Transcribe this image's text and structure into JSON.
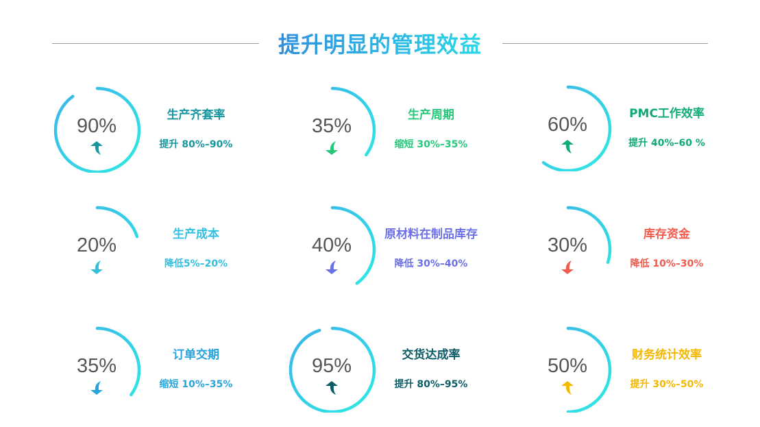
{
  "title": "提升明显的管理效益",
  "gradient": [
    "#3bb3ea",
    "#2eeae2"
  ],
  "items": [
    {
      "value": "90%",
      "percent": 90,
      "name": "生产齐套率",
      "detail": "提升 80%–90%",
      "color": "#16969e",
      "direction": "up"
    },
    {
      "value": "35%",
      "percent": 35,
      "name": "生产周期",
      "detail": "缩短 30%–35%",
      "color": "#27c77a",
      "direction": "down"
    },
    {
      "value": "60%",
      "percent": 60,
      "name": "PMC工作效率",
      "detail": "提升 40%–60 %",
      "color": "#10aa78",
      "direction": "up"
    },
    {
      "value": "20%",
      "percent": 20,
      "name": "生产成本",
      "detail": "降低5%–20%",
      "color": "#33c0e0",
      "direction": "down"
    },
    {
      "value": "40%",
      "percent": 40,
      "name": "原材料在制品库存",
      "detail": "降低 30%–40%",
      "color": "#6c70e6",
      "direction": "down"
    },
    {
      "value": "30%",
      "percent": 30,
      "name": "库存资金",
      "detail": "降低 10%–30%",
      "color": "#f25a4e",
      "direction": "down"
    },
    {
      "value": "35%",
      "percent": 35,
      "name": "订单交期",
      "detail": "缩短 10%–35%",
      "color": "#27a4dc",
      "direction": "down"
    },
    {
      "value": "95%",
      "percent": 95,
      "name": "交货达成率",
      "detail": "提升 80%–95%",
      "color": "#0c5c66",
      "direction": "up"
    },
    {
      "value": "50%",
      "percent": 50,
      "name": "财务统计效率",
      "detail": "提升 30%–50%",
      "color": "#f5b800",
      "direction": "up"
    }
  ]
}
